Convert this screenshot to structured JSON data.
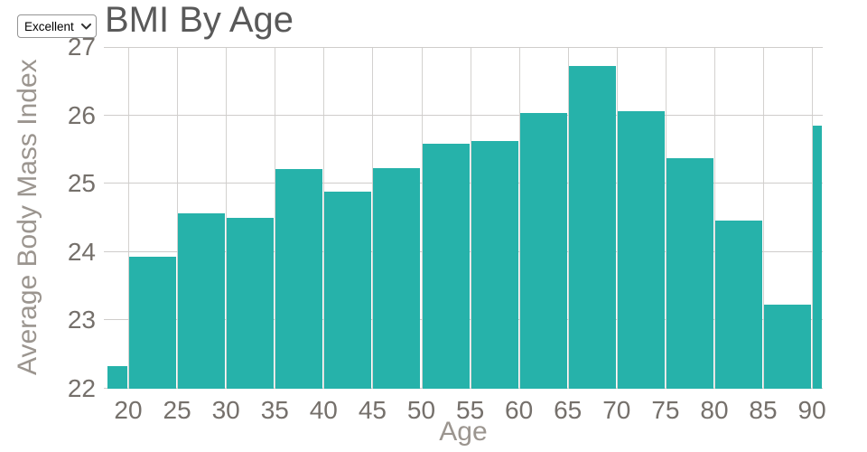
{
  "controls": {
    "rating_dropdown": {
      "selected": "Excellent",
      "options": [
        "Excellent"
      ]
    }
  },
  "chart_data": {
    "type": "bar",
    "title": "BMI By Age",
    "xlabel": "Age",
    "ylabel": "Average Body Mass Index",
    "xlim": [
      17.5,
      91.1
    ],
    "ylim": [
      22,
      27
    ],
    "yticks": [
      27,
      26,
      25,
      24,
      23,
      22
    ],
    "xticks": [
      20,
      25,
      30,
      35,
      40,
      45,
      50,
      55,
      60,
      65,
      70,
      75,
      80,
      85,
      90
    ],
    "grid": true,
    "legend": "none",
    "colors": {
      "bar": "#26b2aa",
      "grid": "#cfcdcb",
      "tick_label": "#75706b",
      "axis_title": "#9b958f",
      "chart_title": "#595959"
    },
    "bars": [
      {
        "x0": 17.8,
        "x1": 20,
        "y": 22.33
      },
      {
        "x0": 20,
        "x1": 25,
        "y": 23.93
      },
      {
        "x0": 25,
        "x1": 30,
        "y": 24.57
      },
      {
        "x0": 30,
        "x1": 35,
        "y": 24.5
      },
      {
        "x0": 35,
        "x1": 40,
        "y": 25.22
      },
      {
        "x0": 40,
        "x1": 45,
        "y": 24.88
      },
      {
        "x0": 45,
        "x1": 50,
        "y": 25.23
      },
      {
        "x0": 50,
        "x1": 55,
        "y": 25.58
      },
      {
        "x0": 55,
        "x1": 60,
        "y": 25.62
      },
      {
        "x0": 60,
        "x1": 65,
        "y": 26.04
      },
      {
        "x0": 65,
        "x1": 70,
        "y": 26.72
      },
      {
        "x0": 70,
        "x1": 75,
        "y": 26.06
      },
      {
        "x0": 75,
        "x1": 80,
        "y": 25.37
      },
      {
        "x0": 80,
        "x1": 85,
        "y": 24.46
      },
      {
        "x0": 85,
        "x1": 90,
        "y": 23.23
      },
      {
        "x0": 90,
        "x1": 91.1,
        "y": 25.85
      }
    ]
  }
}
